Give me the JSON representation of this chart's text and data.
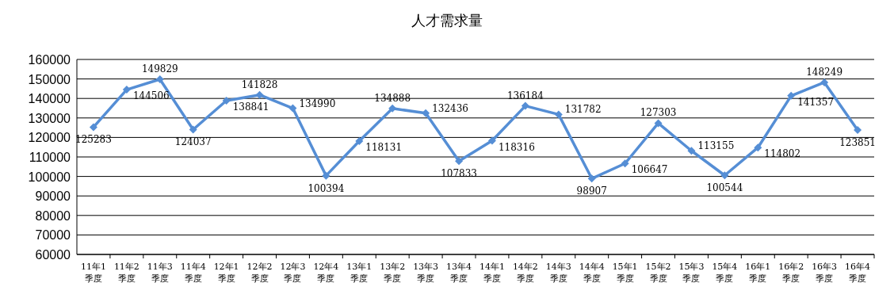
{
  "chart_data": {
    "type": "line",
    "title": "人才需求量",
    "categories": [
      "11年1季度",
      "11年2季度",
      "11年3季度",
      "11年4季度",
      "12年1季度",
      "12年2季度",
      "12年3季度",
      "12年4季度",
      "13年1季度",
      "13年2季度",
      "13年3季度",
      "13年4季度",
      "14年1季度",
      "14年2季度",
      "14年3季度",
      "14年4季度",
      "15年1季度",
      "15年2季度",
      "15年3季度",
      "15年4季度",
      "16年1季度",
      "16年2季度",
      "16年3季度",
      "16年4季度"
    ],
    "series": [
      {
        "color": "#558ed5",
        "values": [
          125283,
          144506,
          149829,
          124037,
          138841,
          141828,
          134990,
          100394,
          118131,
          134888,
          132436,
          107833,
          118316,
          136184,
          131782,
          98907,
          106647,
          127303,
          113155,
          100544,
          114802,
          141357,
          148249,
          123851
        ]
      }
    ],
    "ylim": [
      60000,
      160000
    ],
    "yticks": [
      60000,
      70000,
      80000,
      90000,
      100000,
      110000,
      120000,
      130000,
      140000,
      150000,
      160000
    ],
    "grid": "y",
    "marker": "diamond",
    "line_style": "solid",
    "data_labels": true
  }
}
